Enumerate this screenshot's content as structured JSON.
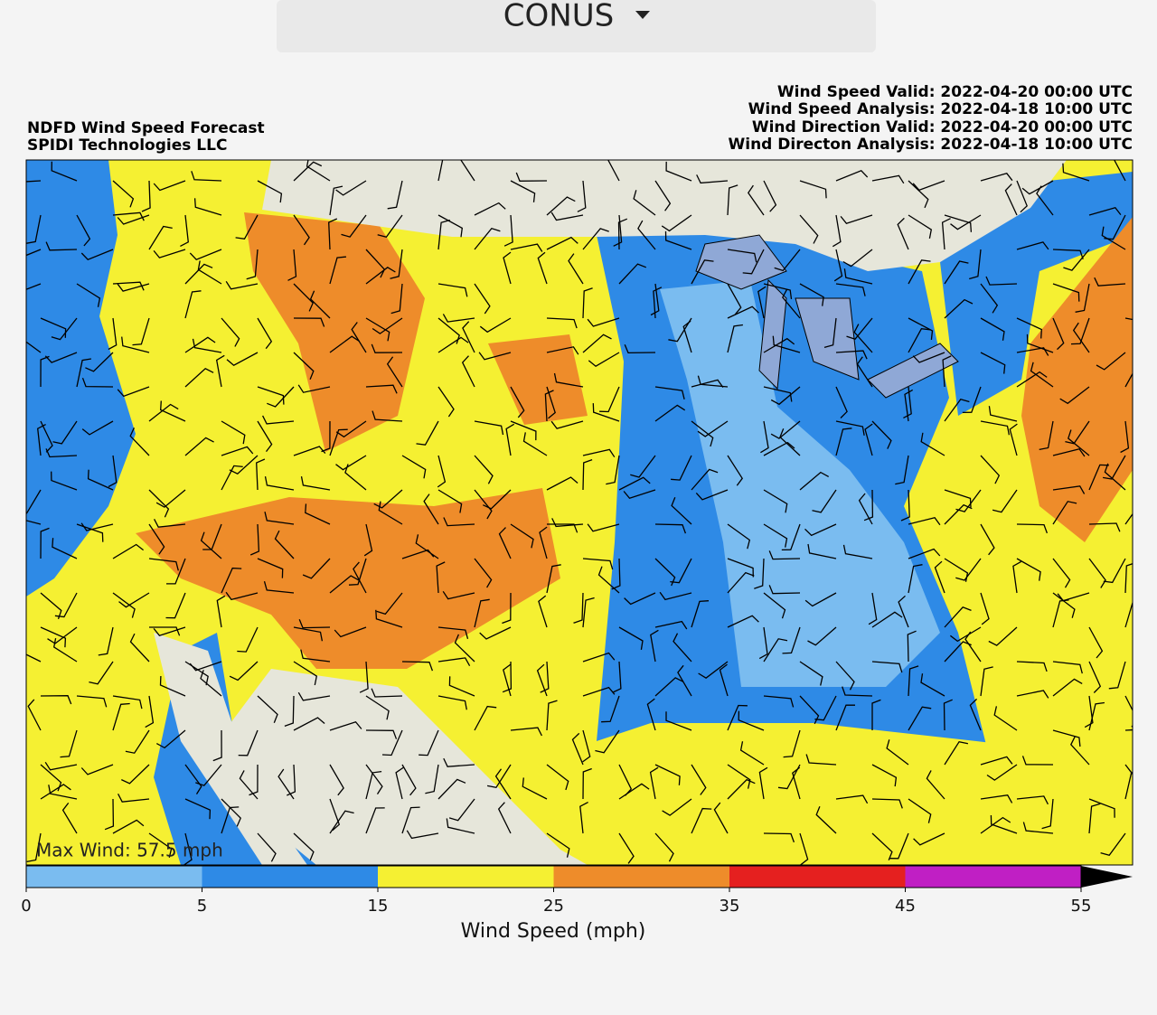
{
  "dropdown": {
    "label": "CONUS"
  },
  "header": {
    "left": [
      "NDFD Wind Speed Forecast",
      "SPIDI Technologies LLC"
    ],
    "right": [
      "Wind Speed Valid: 2022-04-20 00:00 UTC",
      "Wind Speed Analysis: 2022-04-18 10:00 UTC",
      "Wind Direction Valid: 2022-04-20 00:00 UTC",
      "Wind Directon Analysis: 2022-04-18 10:00 UTC"
    ]
  },
  "map": {
    "max_wind": "Max Wind: 57.5 mph"
  },
  "colorbar": {
    "label": "Wind Speed (mph)",
    "ticks": [
      0,
      5,
      15,
      25,
      35,
      45,
      55
    ],
    "colors": [
      "#7abcf0",
      "#2e8ae6",
      "#f5f032",
      "#ee8c2a",
      "#e5201f",
      "#c01fc4"
    ],
    "extend_color": "#000000"
  }
}
